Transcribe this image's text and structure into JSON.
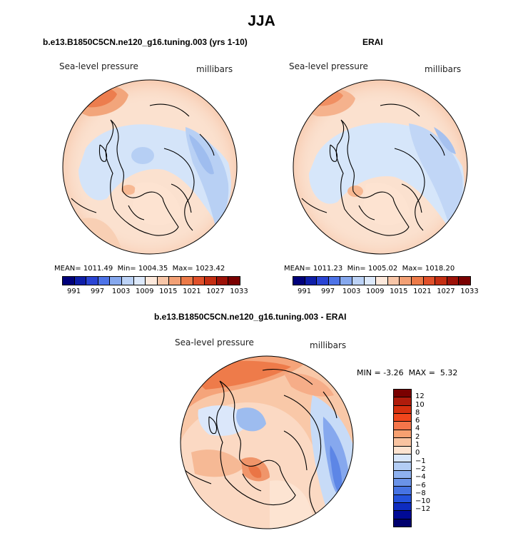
{
  "main_title": "JJA",
  "panels": [
    {
      "title": "b.e13.B1850C5CN.ne120_g16.tuning.003 (yrs 1-10)",
      "variable": "Sea-level pressure",
      "units": "millibars",
      "mean_label": "MEAN=",
      "mean": "1011.49",
      "min_label": "Min=",
      "min": "1004.35",
      "max_label": "Max=",
      "max": "1023.42"
    },
    {
      "title": "ERAI",
      "variable": "Sea-level pressure",
      "units": "millibars",
      "mean_label": "MEAN=",
      "mean": "1011.23",
      "min_label": "Min=",
      "min": "1005.02",
      "max_label": "Max=",
      "max": "1018.20"
    }
  ],
  "abs_colorbar": {
    "colors": [
      "#00007a",
      "#0e1ea8",
      "#2a44d4",
      "#4d73e8",
      "#86a8ee",
      "#bcd2f6",
      "#dde9fb",
      "#fde9dc",
      "#f8c6a8",
      "#f2a075",
      "#ec7a48",
      "#e0502a",
      "#c42e12",
      "#9d1208",
      "#7a0000"
    ],
    "tick_labels": [
      "991",
      "997",
      "1003",
      "1009",
      "1015",
      "1021",
      "1027",
      "1033"
    ]
  },
  "diff": {
    "title": "b.e13.B1850C5CN.ne120_g16.tuning.003 - ERAI",
    "variable": "Sea-level pressure",
    "units": "millibars",
    "min_label": "MIN =",
    "min": "-3.26",
    "max_label": "MAX =",
    "max": "5.32",
    "colorbar_colors_top_to_bottom": [
      "#7a0000",
      "#b01c0c",
      "#d6300f",
      "#f0461c",
      "#f5754a",
      "#f7a070",
      "#f9c3a0",
      "#fde3d0",
      "#d8e6fa",
      "#b3cdf5",
      "#8eb1ef",
      "#6a93e8",
      "#4673e3",
      "#2452dc",
      "#0e2cc0",
      "#000a96",
      "#00006e"
    ],
    "colorbar_ticks_top_to_bottom": [
      "12",
      "10",
      "8",
      "6",
      "4",
      "2",
      "1",
      "0",
      "−1",
      "−2",
      "−4",
      "−6",
      "−8",
      "−10",
      "−12"
    ]
  }
}
